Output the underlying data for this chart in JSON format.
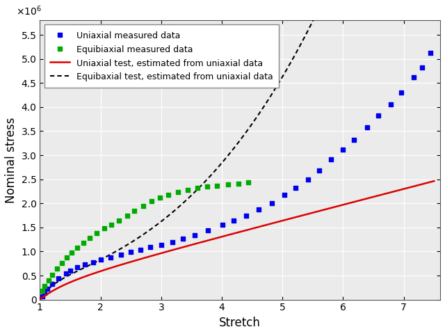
{
  "title": "",
  "xlabel": "Stretch",
  "ylabel": "Nominal stress",
  "ylim": [
    0,
    5800000.0
  ],
  "xlim": [
    1.0,
    7.6
  ],
  "legend_labels": [
    "Uniaxial measured data",
    "Equibiaxial measured data",
    "Uniaxial test, estimated from uniaxial data",
    "Equibaxial test, estimated from uniaxial data"
  ],
  "blue_marker_color": "#0000ee",
  "green_marker_color": "#00aa00",
  "red_line_color": "#dd0000",
  "black_dot_color": "#000000",
  "background_color": "#ebebeb",
  "grid_color": "#ffffff",
  "uni_stretch": [
    1.04,
    1.08,
    1.12,
    1.2,
    1.3,
    1.43,
    1.5,
    1.62,
    1.74,
    1.88,
    2.0,
    2.16,
    2.34,
    2.5,
    2.66,
    2.82,
    3.0,
    3.18,
    3.36,
    3.55,
    3.77,
    4.01,
    4.2,
    4.4,
    4.61,
    4.82,
    5.03,
    5.22,
    5.42,
    5.6,
    5.8,
    6.0,
    6.18,
    6.39,
    6.58,
    6.78,
    6.96,
    7.16,
    7.3,
    7.44
  ],
  "uni_stress": [
    0.07,
    0.14,
    0.22,
    0.33,
    0.44,
    0.54,
    0.6,
    0.67,
    0.73,
    0.78,
    0.83,
    0.88,
    0.94,
    0.99,
    1.04,
    1.09,
    1.14,
    1.19,
    1.26,
    1.34,
    1.44,
    1.55,
    1.64,
    1.75,
    1.88,
    2.01,
    2.17,
    2.32,
    2.5,
    2.68,
    2.91,
    3.12,
    3.32,
    3.58,
    3.82,
    4.05,
    4.3,
    4.62,
    4.82,
    5.12
  ],
  "eq_stretch": [
    1.04,
    1.08,
    1.14,
    1.2,
    1.28,
    1.36,
    1.44,
    1.52,
    1.62,
    1.72,
    1.82,
    1.94,
    2.06,
    2.18,
    2.3,
    2.44,
    2.56,
    2.7,
    2.84,
    2.98,
    3.12,
    3.28,
    3.44,
    3.6,
    3.76,
    3.92,
    4.1,
    4.28,
    4.44
  ],
  "eq_stress": [
    0.18,
    0.28,
    0.4,
    0.52,
    0.64,
    0.76,
    0.88,
    0.98,
    1.08,
    1.18,
    1.28,
    1.38,
    1.48,
    1.56,
    1.64,
    1.74,
    1.84,
    1.94,
    2.04,
    2.12,
    2.18,
    2.24,
    2.28,
    2.32,
    2.35,
    2.37,
    2.39,
    2.41,
    2.43
  ],
  "C10": 163000,
  "C01": 12000,
  "figsize": [
    6.4,
    4.8
  ],
  "dpi": 100
}
